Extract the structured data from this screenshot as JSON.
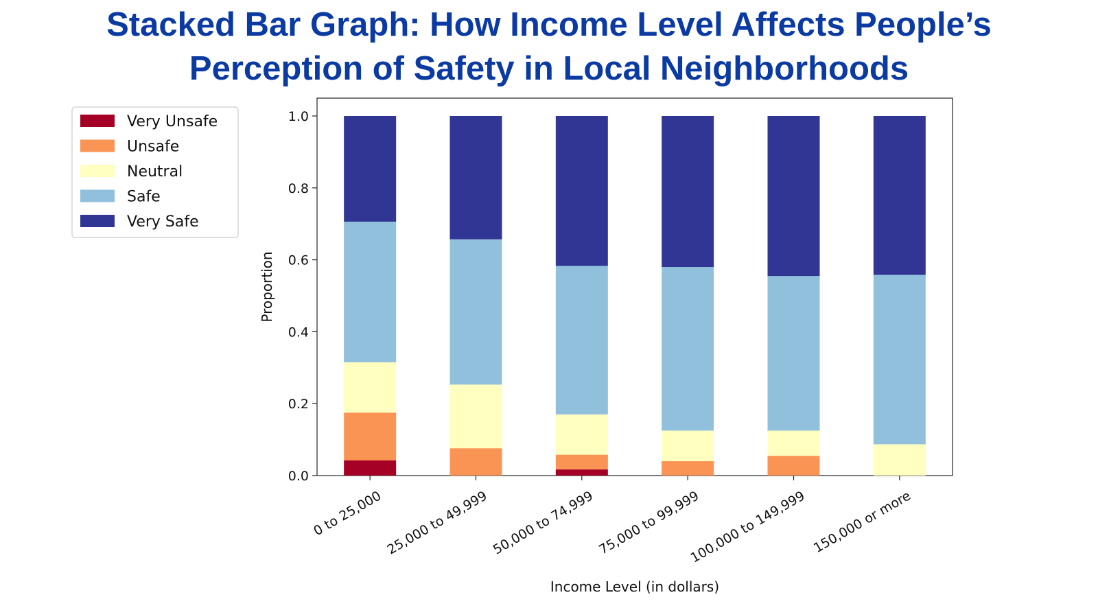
{
  "header": {
    "title_line1": "Stacked Bar Graph: How Income Level Affects People’s",
    "title_line2": "Perception of Safety in Local Neighborhoods"
  },
  "chart_data": {
    "type": "bar",
    "stacked": true,
    "title": "",
    "xlabel": "Income Level (in dollars)",
    "ylabel": "Proportion",
    "ylim": [
      0,
      1.05
    ],
    "yticks": [
      "0.0",
      "0.2",
      "0.4",
      "0.6",
      "0.8",
      "1.0"
    ],
    "categories": [
      "0 to 25,000",
      "25,000 to 49,999",
      "50,000 to 74,999",
      "75,000 to 99,999",
      "100,000 to 149,999",
      "150,000 or more"
    ],
    "series": [
      {
        "name": "Very Unsafe",
        "color": "#a50026",
        "values": [
          0.042,
          0.0,
          0.017,
          0.0,
          0.0,
          0.0
        ]
      },
      {
        "name": "Unsafe",
        "color": "#f99455",
        "values": [
          0.133,
          0.076,
          0.041,
          0.04,
          0.055,
          0.0
        ]
      },
      {
        "name": "Neutral",
        "color": "#ffffbf",
        "values": [
          0.14,
          0.177,
          0.112,
          0.085,
          0.07,
          0.087
        ]
      },
      {
        "name": "Safe",
        "color": "#91c0dd",
        "values": [
          0.391,
          0.404,
          0.413,
          0.455,
          0.43,
          0.471
        ]
      },
      {
        "name": "Very Safe",
        "color": "#313695",
        "values": [
          0.294,
          0.343,
          0.417,
          0.42,
          0.445,
          0.442
        ]
      }
    ],
    "legend": {
      "placement": "upper-left outside"
    },
    "grid": false
  }
}
